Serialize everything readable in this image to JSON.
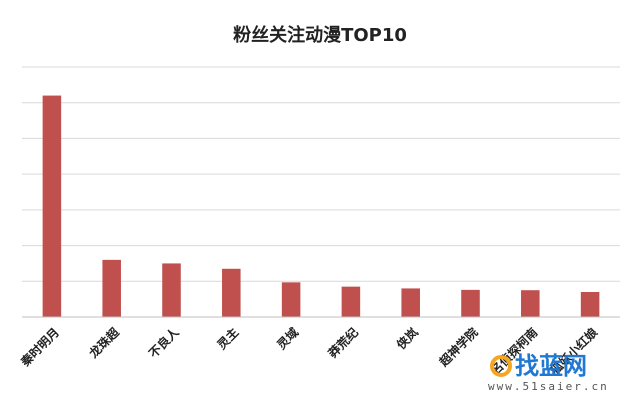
{
  "chart_data": {
    "type": "bar",
    "title": "粉丝关注动漫TOP10",
    "categories": [
      "秦时明月",
      "龙珠超",
      "不良人",
      "灵主",
      "灵域",
      "莽荒纪",
      "侠岚",
      "超神学院",
      "名侦探柯南",
      "狐妖小红娘"
    ],
    "values": [
      6.2,
      1.6,
      1.5,
      1.35,
      0.97,
      0.85,
      0.8,
      0.76,
      0.75,
      0.7
    ],
    "ylim": [
      0,
      7
    ],
    "ygrid_step": 1,
    "grid": true,
    "y_tick_labels_shown": false,
    "bar_color": "#c0504d",
    "xlabel": "",
    "ylabel": ""
  },
  "watermark": {
    "logo": "找蓝网",
    "url": "www.51saier.cn"
  }
}
